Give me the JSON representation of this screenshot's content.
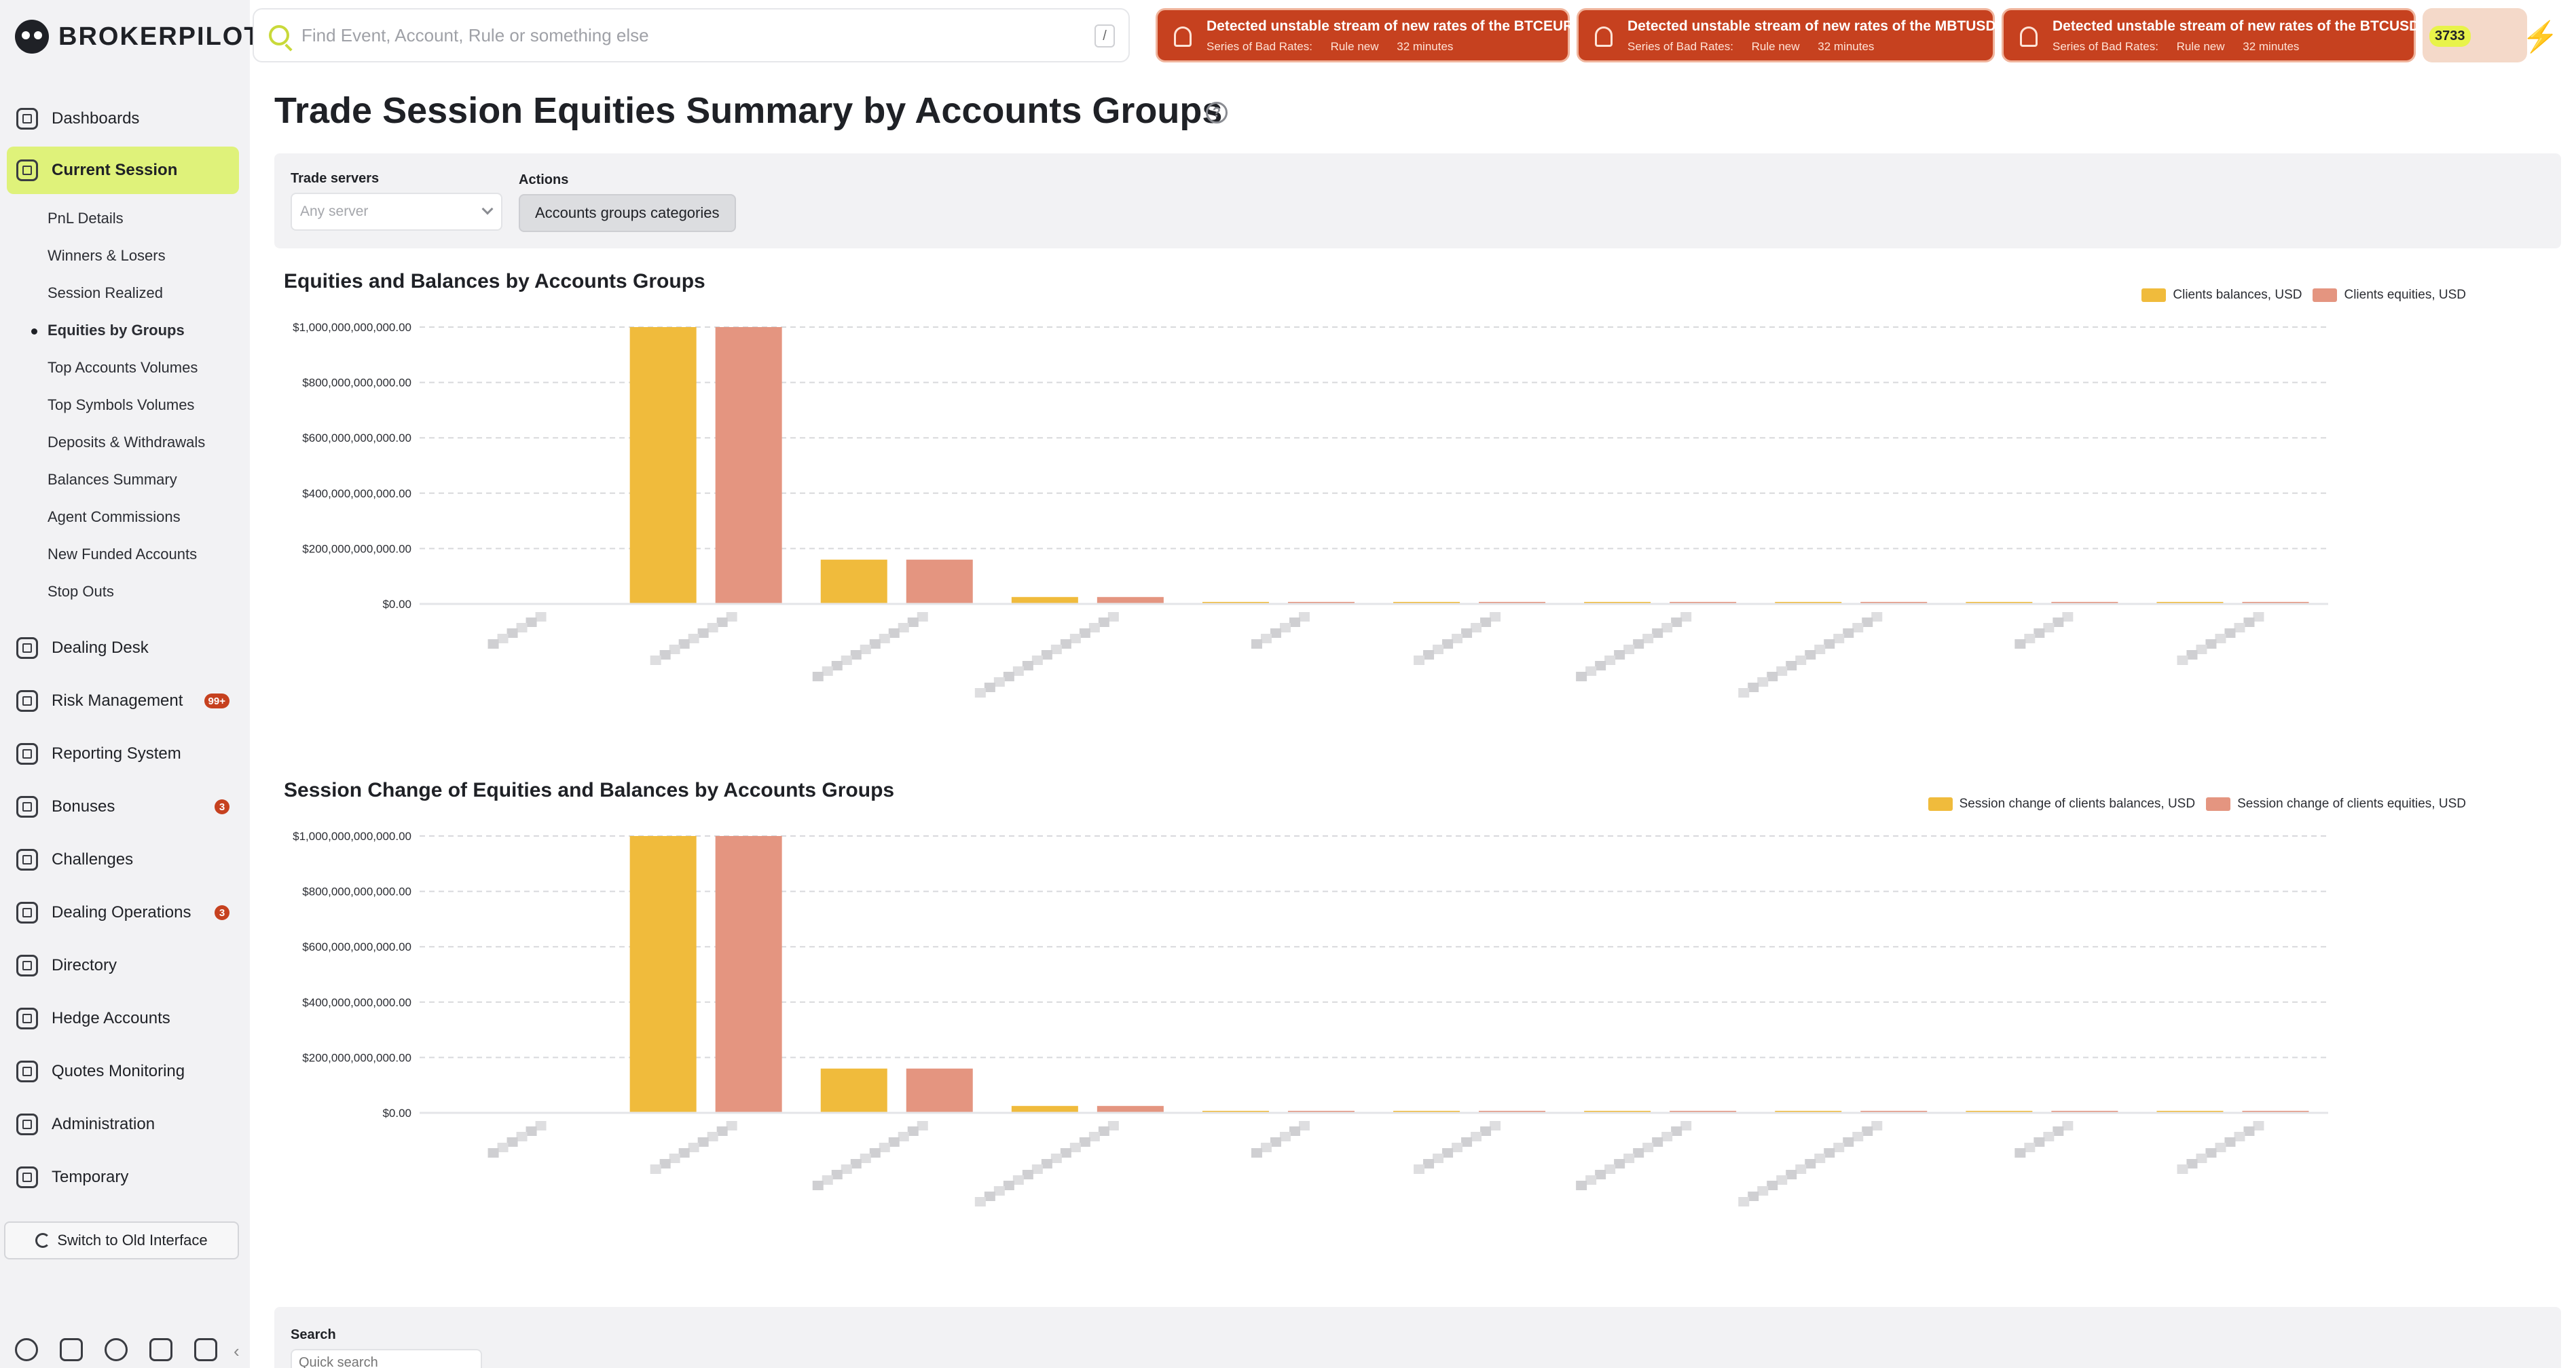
{
  "app": {
    "name": "BROKERPILOT"
  },
  "search": {
    "placeholder": "Find Event, Account, Rule or something else",
    "shortcut": "/"
  },
  "alerts": [
    {
      "title": "Detected unstable stream of new rates of the BTCEUR!",
      "series": "Series of Bad Rates:",
      "rule": "Rule new",
      "time": "32 minutes"
    },
    {
      "title": "Detected unstable stream of new rates of the MBTUSD!",
      "series": "Series of Bad Rates:",
      "rule": "Rule new",
      "time": "32 minutes"
    },
    {
      "title": "Detected unstable stream of new rates of the BTCUSD!",
      "series": "Series of Bad Rates:",
      "rule": "Rule new",
      "time": "32 minutes"
    }
  ],
  "counter": "3733",
  "sidebar": {
    "items": [
      {
        "label": "Dashboards",
        "icon": "dashboard-icon"
      },
      {
        "label": "Current Session",
        "icon": "session-icon",
        "active": true
      },
      {
        "label": "Dealing Desk",
        "icon": "dealing-desk-icon"
      },
      {
        "label": "Risk Management",
        "icon": "risk-icon",
        "badge": "99+"
      },
      {
        "label": "Reporting System",
        "icon": "report-icon"
      },
      {
        "label": "Bonuses",
        "icon": "bonus-icon",
        "badge": "3"
      },
      {
        "label": "Challenges",
        "icon": "flag-icon"
      },
      {
        "label": "Dealing Operations",
        "icon": "calendar-icon",
        "badge": "3"
      },
      {
        "label": "Directory",
        "icon": "directory-icon"
      },
      {
        "label": "Hedge Accounts",
        "icon": "hedge-icon"
      },
      {
        "label": "Quotes Monitoring",
        "icon": "quotes-icon"
      },
      {
        "label": "Administration",
        "icon": "admin-icon"
      },
      {
        "label": "Temporary",
        "icon": "temporary-icon"
      }
    ],
    "subitems": [
      "PnL Details",
      "Winners & Losers",
      "Session Realized",
      "Equities by Groups",
      "Top Accounts Volumes",
      "Top Symbols Volumes",
      "Deposits & Withdrawals",
      "Balances Summary",
      "Agent Commissions",
      "New Funded Accounts",
      "Stop Outs"
    ],
    "active_subitem": "Equities by Groups",
    "switch_label": "Switch to Old Interface",
    "bottom_icons": [
      "settings-icon",
      "monitor-icon",
      "moon-icon",
      "sound-off-icon",
      "logout-icon"
    ],
    "collapse_label": "‹"
  },
  "page": {
    "title": "Trade Session Equities Summary by Accounts Groups",
    "help": "?",
    "filters": {
      "trade_servers_label": "Trade servers",
      "trade_servers_placeholder": "Any server",
      "actions_label": "Actions",
      "actions_button": "Accounts groups categories"
    },
    "search_label": "Search",
    "quick_search_placeholder": "Quick search"
  },
  "colors": {
    "balance": "#f0bb3c",
    "equity": "#e49580",
    "accent": "#dff27a",
    "alert": "#c6411f"
  },
  "chart_data": [
    {
      "type": "bar",
      "title": "Equities and Balances by Accounts Groups",
      "y_ticks": [
        "$1,000,000,000,000.00",
        "$800,000,000,000.00",
        "$600,000,000,000.00",
        "$400,000,000,000.00",
        "$200,000,000,000.00",
        "$0.00"
      ],
      "ylim": [
        0,
        1000000000000
      ],
      "categories_visible": false,
      "series": [
        {
          "name": "Clients balances, USD",
          "color": "#f0bb3c",
          "values": [
            0,
            1000000000000,
            160000000000,
            25000000000,
            3000000000,
            1500000000,
            1000000000,
            800000000,
            600000000,
            2000000000
          ]
        },
        {
          "name": "Clients equities, USD",
          "color": "#e49580",
          "values": [
            0,
            1000000000000,
            160000000000,
            25000000000,
            3000000000,
            1500000000,
            1000000000,
            800000000,
            600000000,
            2000000000
          ]
        }
      ],
      "grid": true,
      "legend_position": "top-right"
    },
    {
      "type": "bar",
      "title": "Session Change of Equities and Balances by Accounts Groups",
      "y_ticks": [
        "$1,000,000,000,000.00",
        "$800,000,000,000.00",
        "$600,000,000,000.00",
        "$400,000,000,000.00",
        "$200,000,000,000.00",
        "$0.00"
      ],
      "ylim": [
        0,
        1000000000000
      ],
      "categories_visible": false,
      "series": [
        {
          "name": "Session change of clients balances, USD",
          "color": "#f0bb3c",
          "values": [
            0,
            1000000000000,
            160000000000,
            25000000000,
            3000000000,
            1500000000,
            1000000000,
            800000000,
            600000000,
            2000000000
          ]
        },
        {
          "name": "Session change of clients equities, USD",
          "color": "#e49580",
          "values": [
            0,
            1000000000000,
            160000000000,
            25000000000,
            3000000000,
            1500000000,
            1000000000,
            800000000,
            600000000,
            2000000000
          ]
        }
      ],
      "grid": true,
      "legend_position": "top-right"
    }
  ]
}
